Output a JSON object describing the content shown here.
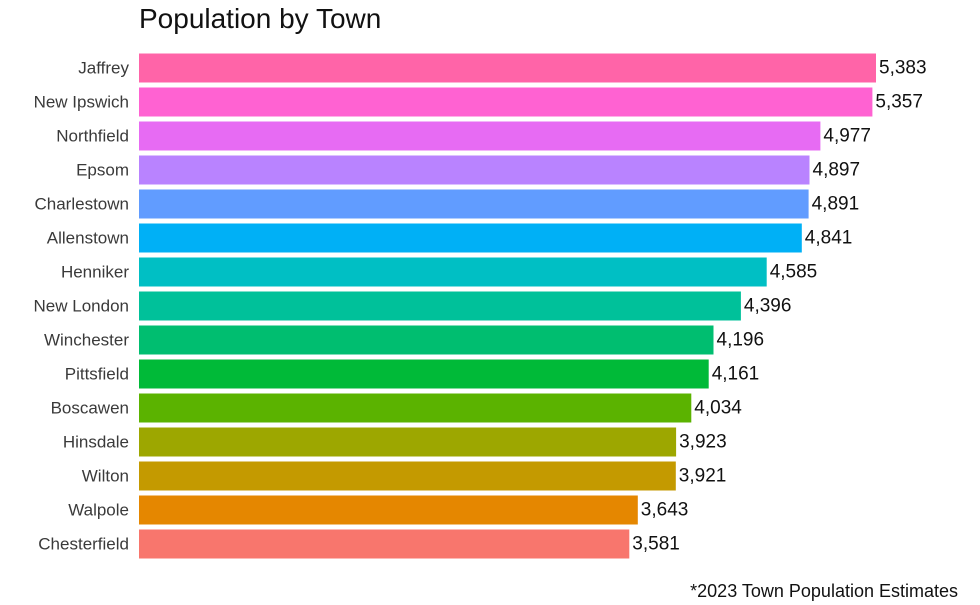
{
  "chart_data": {
    "type": "bar",
    "orientation": "horizontal",
    "title": "Population by Town",
    "footnote": "*2023 Town Population Estimates",
    "xlabel": "",
    "ylabel": "",
    "xlim": [
      0,
      5500
    ],
    "grid": false,
    "legend": "none",
    "categories": [
      "Jaffrey",
      "New Ipswich",
      "Northfield",
      "Epsom",
      "Charlestown",
      "Allenstown",
      "Henniker",
      "New London",
      "Winchester",
      "Pittsfield",
      "Boscawen",
      "Hinsdale",
      "Wilton",
      "Walpole",
      "Chesterfield"
    ],
    "values": [
      5383,
      5357,
      4977,
      4897,
      4891,
      4841,
      4585,
      4396,
      4196,
      4161,
      4034,
      3923,
      3921,
      3643,
      3581
    ],
    "value_labels": [
      "5,383",
      "5,357",
      "4,977",
      "4,897",
      "4,891",
      "4,841",
      "4,585",
      "4,396",
      "4,196",
      "4,161",
      "4,034",
      "3,923",
      "3,921",
      "3,643",
      "3,581"
    ],
    "colors": [
      "#FF64A8",
      "#FF62D2",
      "#E76BF3",
      "#B983FF",
      "#619CFF",
      "#00B0F6",
      "#00BFC4",
      "#00C19A",
      "#00BE70",
      "#00BA38",
      "#5BB300",
      "#9DA700",
      "#C49A00",
      "#E58700",
      "#F8766D"
    ]
  }
}
